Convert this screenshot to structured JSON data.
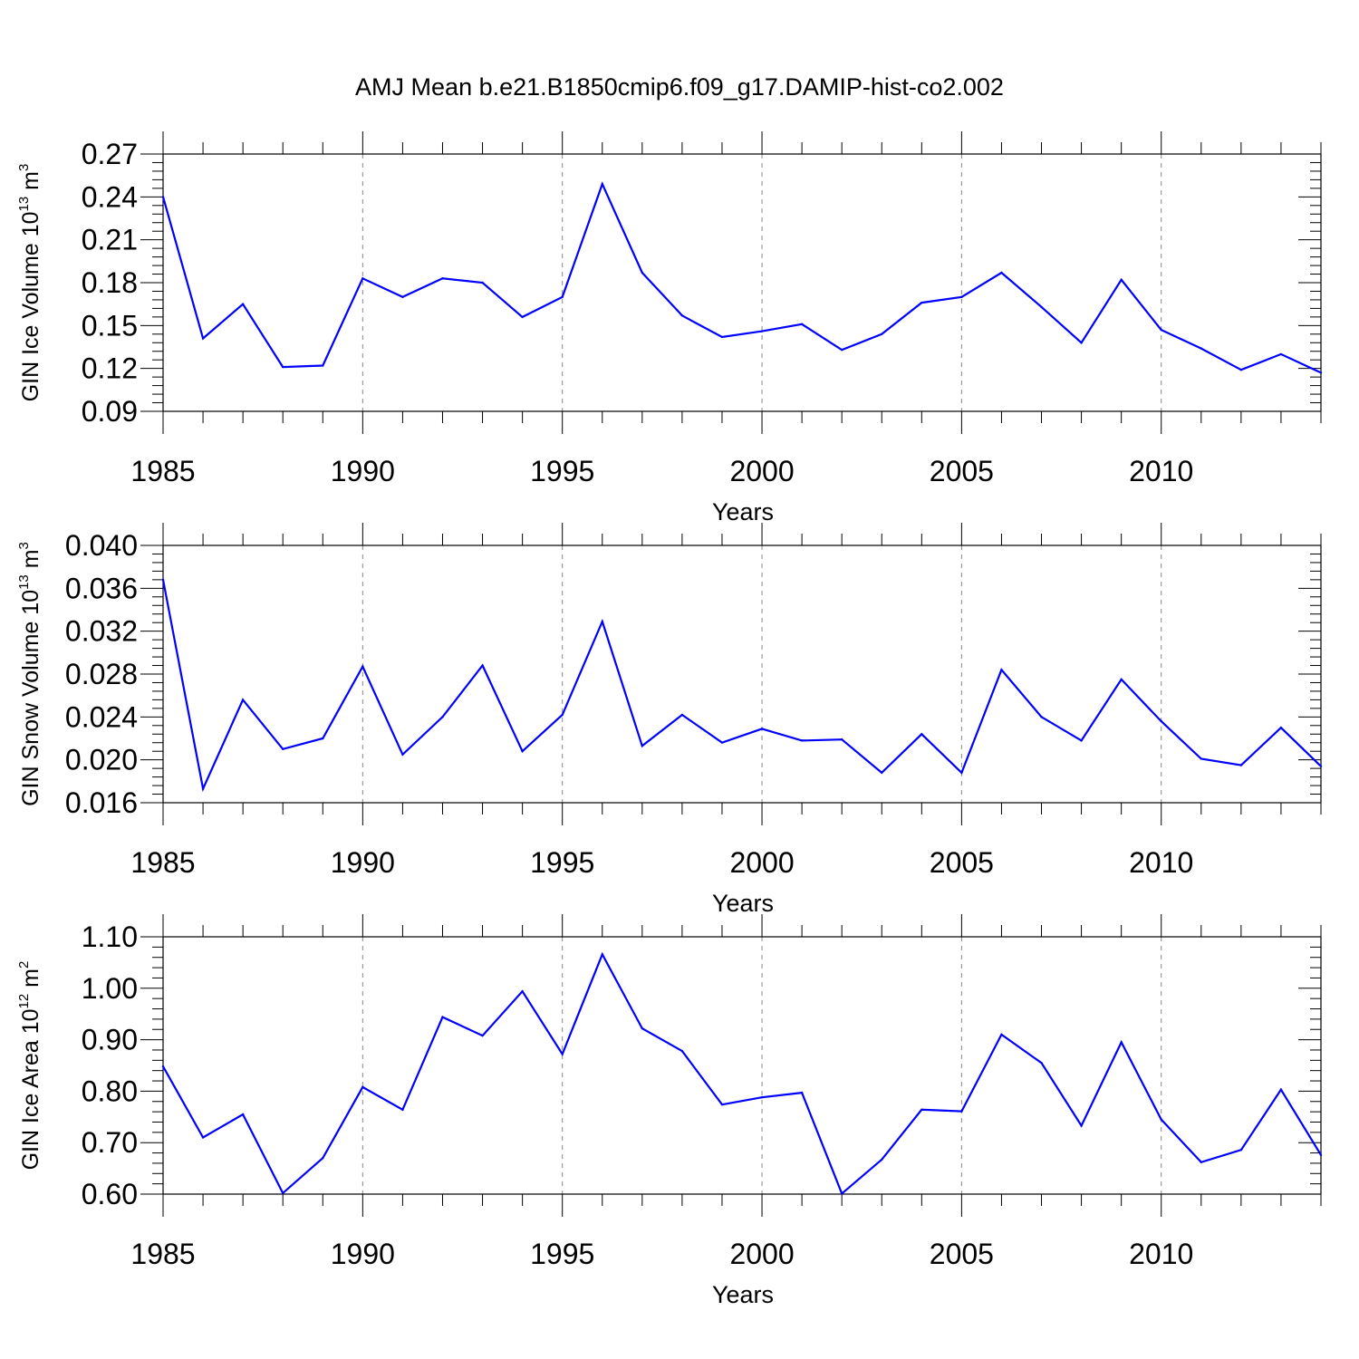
{
  "title": "AMJ Mean b.e21.B1850cmip6.f09_g17.DAMIP-hist-co2.002",
  "colors": {
    "line": "#0000ff",
    "axes": "#000000",
    "grid": "#888888"
  },
  "chart_data": [
    {
      "type": "line",
      "xlabel": "Years",
      "ylabel": {
        "text": "GIN Ice Volume 10",
        "sup": "13",
        "unit": "m",
        "unit_sup": "3"
      },
      "xlim": [
        1985,
        2014
      ],
      "ylim": [
        0.09,
        0.27
      ],
      "x_ticks": [
        "1985",
        "1990",
        "1995",
        "2000",
        "2005",
        "2010"
      ],
      "y_ticks": [
        "0.09",
        "0.12",
        "0.15",
        "0.18",
        "0.21",
        "0.24",
        "0.27"
      ],
      "grid": "vertical dashed at major x ticks",
      "x": [
        1985,
        1986,
        1987,
        1988,
        1989,
        1990,
        1991,
        1992,
        1993,
        1994,
        1995,
        1996,
        1997,
        1998,
        1999,
        2000,
        2001,
        2002,
        2003,
        2004,
        2005,
        2006,
        2007,
        2008,
        2009,
        2010,
        2011,
        2012,
        2013,
        2014
      ],
      "values": [
        0.24,
        0.141,
        0.165,
        0.121,
        0.122,
        0.183,
        0.17,
        0.183,
        0.18,
        0.156,
        0.17,
        0.249,
        0.187,
        0.157,
        0.142,
        0.146,
        0.151,
        0.133,
        0.144,
        0.166,
        0.17,
        0.187,
        0.163,
        0.138,
        0.182,
        0.147,
        0.134,
        0.119,
        0.13,
        0.117
      ]
    },
    {
      "type": "line",
      "xlabel": "Years",
      "ylabel": {
        "text": "GIN Snow Volume 10",
        "sup": "13",
        "unit": "m",
        "unit_sup": "3"
      },
      "xlim": [
        1985,
        2014
      ],
      "ylim": [
        0.016,
        0.04
      ],
      "x_ticks": [
        "1985",
        "1990",
        "1995",
        "2000",
        "2005",
        "2010"
      ],
      "y_ticks": [
        "0.016",
        "0.020",
        "0.024",
        "0.028",
        "0.032",
        "0.036",
        "0.040"
      ],
      "grid": "vertical dashed at major x ticks",
      "x": [
        1985,
        1986,
        1987,
        1988,
        1989,
        1990,
        1991,
        1992,
        1993,
        1994,
        1995,
        1996,
        1997,
        1998,
        1999,
        2000,
        2001,
        2002,
        2003,
        2004,
        2005,
        2006,
        2007,
        2008,
        2009,
        2010,
        2011,
        2012,
        2013,
        2014
      ],
      "values": [
        0.0368,
        0.0173,
        0.0256,
        0.021,
        0.022,
        0.0287,
        0.0205,
        0.024,
        0.0288,
        0.0208,
        0.0242,
        0.0329,
        0.0213,
        0.0242,
        0.0216,
        0.0229,
        0.0218,
        0.0219,
        0.0188,
        0.0224,
        0.0188,
        0.0284,
        0.024,
        0.0218,
        0.0275,
        0.0236,
        0.0201,
        0.0195,
        0.023,
        0.0194
      ]
    },
    {
      "type": "line",
      "xlabel": "Years",
      "ylabel": {
        "text": "GIN Ice Area 10",
        "sup": "12",
        "unit": "m",
        "unit_sup": "2"
      },
      "xlim": [
        1985,
        2014
      ],
      "ylim": [
        0.6,
        1.1
      ],
      "x_ticks": [
        "1985",
        "1990",
        "1995",
        "2000",
        "2005",
        "2010"
      ],
      "y_ticks": [
        "0.60",
        "0.70",
        "0.80",
        "0.90",
        "1.00",
        "1.10"
      ],
      "grid": "vertical dashed at major x ticks",
      "x": [
        1985,
        1986,
        1987,
        1988,
        1989,
        1990,
        1991,
        1992,
        1993,
        1994,
        1995,
        1996,
        1997,
        1998,
        1999,
        2000,
        2001,
        2002,
        2003,
        2004,
        2005,
        2006,
        2007,
        2008,
        2009,
        2010,
        2011,
        2012,
        2013,
        2014
      ],
      "values": [
        0.848,
        0.71,
        0.755,
        0.602,
        0.67,
        0.808,
        0.764,
        0.944,
        0.908,
        0.994,
        0.872,
        1.066,
        0.922,
        0.878,
        0.774,
        0.788,
        0.797,
        0.601,
        0.667,
        0.764,
        0.761,
        0.91,
        0.855,
        0.733,
        0.895,
        0.745,
        0.662,
        0.686,
        0.803,
        0.676
      ]
    }
  ]
}
